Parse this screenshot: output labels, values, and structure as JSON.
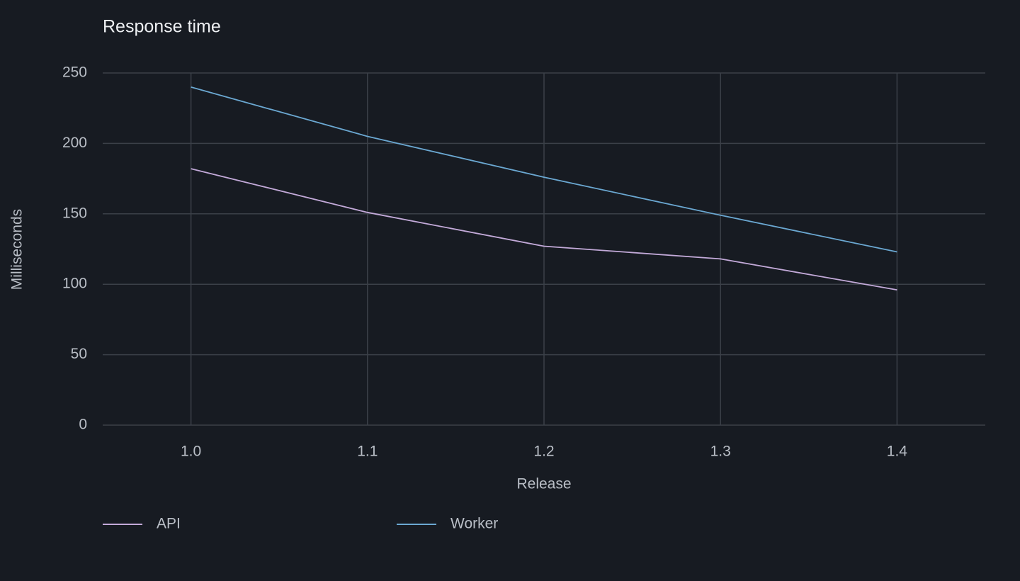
{
  "chart_data": {
    "type": "line",
    "title": "Response time",
    "x_label": "Release",
    "y_label": "Milliseconds",
    "categories": [
      "1.0",
      "1.1",
      "1.2",
      "1.3",
      "1.4"
    ],
    "series": [
      {
        "name": "API",
        "color": "#c3aad9",
        "values": [
          182,
          151,
          127,
          118,
          96
        ]
      },
      {
        "name": "Worker",
        "color": "#6ba8d2",
        "values": [
          240,
          205,
          176,
          149,
          123
        ]
      }
    ],
    "ylim": [
      0,
      250
    ],
    "yticks": [
      0,
      50,
      100,
      150,
      200,
      250
    ],
    "grid": true
  }
}
